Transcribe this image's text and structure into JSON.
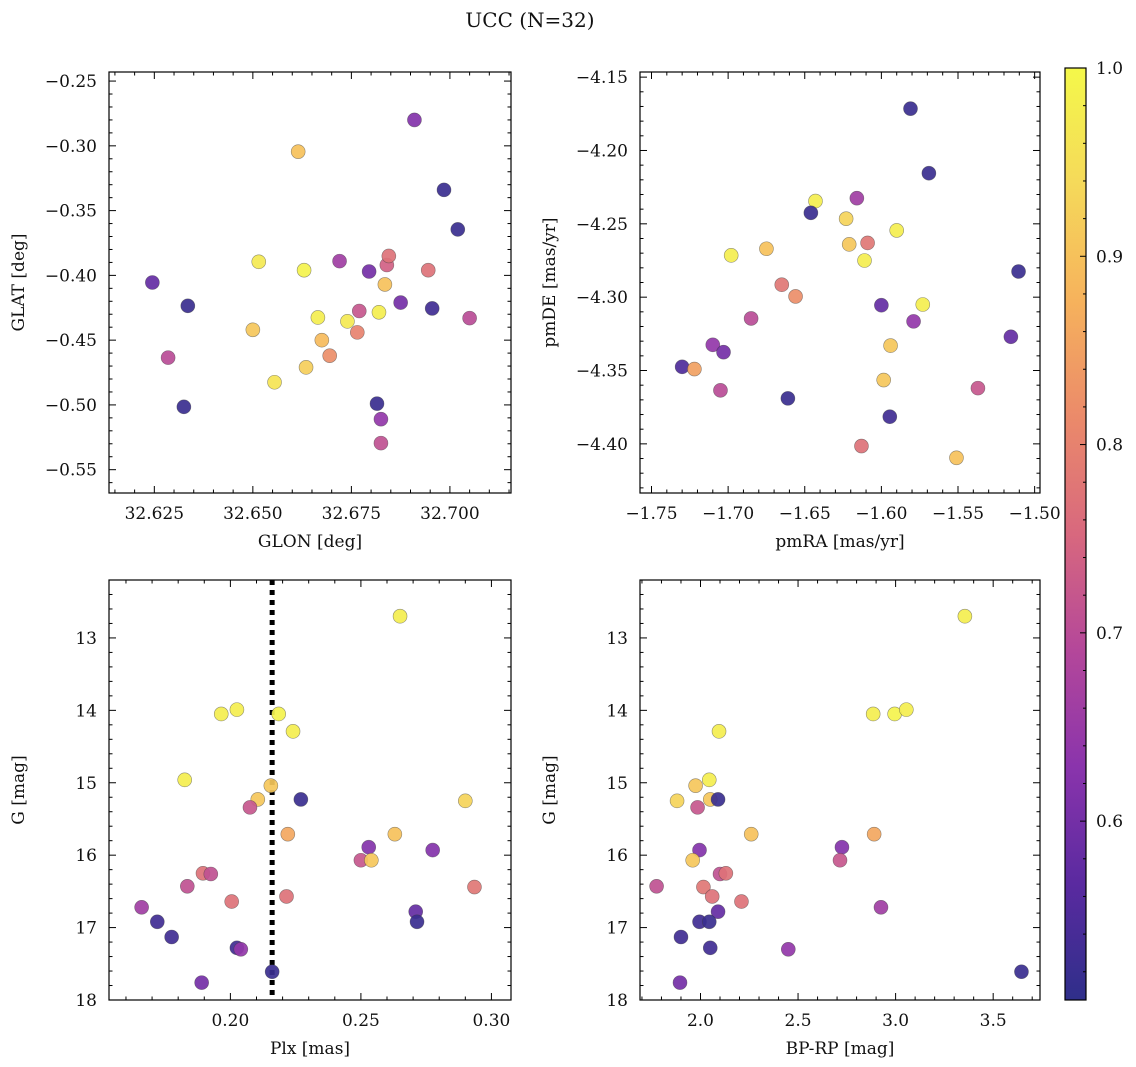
{
  "figure": {
    "title": "UCC (N=32)"
  },
  "chart_data": [
    {
      "type": "scatter",
      "panel": "top-left",
      "xlabel": "GLON [deg]",
      "ylabel": "GLAT [deg]",
      "xlim": [
        32.6135,
        32.7155
      ],
      "ylim": [
        -0.568,
        -0.243
      ],
      "xticks": [
        32.625,
        32.65,
        32.675,
        32.7
      ],
      "xtick_labels": [
        "32.625",
        "32.650",
        "32.675",
        "32.700"
      ],
      "yticks": [
        -0.55,
        -0.5,
        -0.45,
        -0.4,
        -0.35,
        -0.3,
        -0.25
      ],
      "ytick_labels": [
        "−0.55",
        "−0.50",
        "−0.45",
        "−0.40",
        "−0.35",
        "−0.30",
        "−0.25"
      ],
      "points": [
        {
          "x": 32.6245,
          "y": -0.4055,
          "c": 0.58
        },
        {
          "x": 32.6335,
          "y": -0.4235,
          "c": 0.52
        },
        {
          "x": 32.6285,
          "y": -0.4635,
          "c": 0.7
        },
        {
          "x": 32.6325,
          "y": -0.5015,
          "c": 0.52
        },
        {
          "x": 32.6615,
          "y": -0.3045,
          "c": 0.9
        },
        {
          "x": 32.6515,
          "y": -0.3895,
          "c": 0.97
        },
        {
          "x": 32.65,
          "y": -0.442,
          "c": 0.91
        },
        {
          "x": 32.6555,
          "y": -0.4825,
          "c": 0.96
        },
        {
          "x": 32.663,
          "y": -0.396,
          "c": 0.99
        },
        {
          "x": 32.6635,
          "y": -0.471,
          "c": 0.92
        },
        {
          "x": 32.6665,
          "y": -0.4325,
          "c": 0.98
        },
        {
          "x": 32.6675,
          "y": -0.45,
          "c": 0.89
        },
        {
          "x": 32.6695,
          "y": -0.462,
          "c": 0.82
        },
        {
          "x": 32.672,
          "y": -0.389,
          "c": 0.66
        },
        {
          "x": 32.674,
          "y": -0.4355,
          "c": 0.97
        },
        {
          "x": 32.6765,
          "y": -0.444,
          "c": 0.8
        },
        {
          "x": 32.677,
          "y": -0.4275,
          "c": 0.72
        },
        {
          "x": 32.6795,
          "y": -0.397,
          "c": 0.6
        },
        {
          "x": 32.6815,
          "y": -0.499,
          "c": 0.52
        },
        {
          "x": 32.682,
          "y": -0.4285,
          "c": 0.98
        },
        {
          "x": 32.6825,
          "y": -0.5295,
          "c": 0.71
        },
        {
          "x": 32.6825,
          "y": -0.511,
          "c": 0.64
        },
        {
          "x": 32.6835,
          "y": -0.407,
          "c": 0.9
        },
        {
          "x": 32.684,
          "y": -0.392,
          "c": 0.74
        },
        {
          "x": 32.6845,
          "y": -0.385,
          "c": 0.77
        },
        {
          "x": 32.6875,
          "y": -0.421,
          "c": 0.6
        },
        {
          "x": 32.691,
          "y": -0.28,
          "c": 0.62
        },
        {
          "x": 32.6945,
          "y": -0.396,
          "c": 0.77
        },
        {
          "x": 32.6955,
          "y": -0.4255,
          "c": 0.53
        },
        {
          "x": 32.6985,
          "y": -0.334,
          "c": 0.52
        },
        {
          "x": 32.702,
          "y": -0.3645,
          "c": 0.52
        },
        {
          "x": 32.705,
          "y": -0.433,
          "c": 0.7
        }
      ]
    },
    {
      "type": "scatter",
      "panel": "top-right",
      "xlabel": "pmRA [mas/yr]",
      "ylabel": "pmDE [mas/yr]",
      "xlim": [
        -1.7575,
        -1.4965
      ],
      "ylim": [
        -4.4335,
        -4.1465
      ],
      "xticks": [
        -1.75,
        -1.7,
        -1.65,
        -1.6,
        -1.55,
        -1.5
      ],
      "xtick_labels": [
        "−1.75",
        "−1.70",
        "−1.65",
        "−1.60",
        "−1.55",
        "−1.50"
      ],
      "yticks": [
        -4.4,
        -4.35,
        -4.3,
        -4.25,
        -4.2,
        -4.15
      ],
      "ytick_labels": [
        "−4.40",
        "−4.35",
        "−4.30",
        "−4.25",
        "−4.20",
        "−4.15"
      ],
      "points": [
        {
          "x": -1.581,
          "y": -4.1715,
          "c": 0.52
        },
        {
          "x": -1.569,
          "y": -4.2155,
          "c": 0.52
        },
        {
          "x": -1.643,
          "y": -4.2345,
          "c": 0.98
        },
        {
          "x": -1.646,
          "y": -4.2425,
          "c": 0.52
        },
        {
          "x": -1.616,
          "y": -4.2325,
          "c": 0.66
        },
        {
          "x": -1.623,
          "y": -4.2465,
          "c": 0.93
        },
        {
          "x": -1.59,
          "y": -4.2545,
          "c": 0.98
        },
        {
          "x": -1.621,
          "y": -4.264,
          "c": 0.91
        },
        {
          "x": -1.609,
          "y": -4.263,
          "c": 0.78
        },
        {
          "x": -1.675,
          "y": -4.267,
          "c": 0.9
        },
        {
          "x": -1.698,
          "y": -4.2715,
          "c": 0.98
        },
        {
          "x": -1.611,
          "y": -4.275,
          "c": 0.98
        },
        {
          "x": -1.5105,
          "y": -4.2825,
          "c": 0.52
        },
        {
          "x": -1.665,
          "y": -4.2915,
          "c": 0.78
        },
        {
          "x": -1.656,
          "y": -4.2995,
          "c": 0.82
        },
        {
          "x": -1.6,
          "y": -4.3055,
          "c": 0.58
        },
        {
          "x": -1.573,
          "y": -4.305,
          "c": 0.98
        },
        {
          "x": -1.685,
          "y": -4.3145,
          "c": 0.7
        },
        {
          "x": -1.579,
          "y": -4.3165,
          "c": 0.64
        },
        {
          "x": -1.5155,
          "y": -4.327,
          "c": 0.58
        },
        {
          "x": -1.71,
          "y": -4.3325,
          "c": 0.64
        },
        {
          "x": -1.594,
          "y": -4.333,
          "c": 0.91
        },
        {
          "x": -1.703,
          "y": -4.3375,
          "c": 0.6
        },
        {
          "x": -1.73,
          "y": -4.3475,
          "c": 0.55
        },
        {
          "x": -1.722,
          "y": -4.349,
          "c": 0.85
        },
        {
          "x": -1.5985,
          "y": -4.3565,
          "c": 0.91
        },
        {
          "x": -1.537,
          "y": -4.362,
          "c": 0.72
        },
        {
          "x": -1.705,
          "y": -4.3635,
          "c": 0.7
        },
        {
          "x": -1.661,
          "y": -4.369,
          "c": 0.52
        },
        {
          "x": -1.5945,
          "y": -4.3815,
          "c": 0.53
        },
        {
          "x": -1.613,
          "y": -4.4015,
          "c": 0.77
        },
        {
          "x": -1.551,
          "y": -4.4095,
          "c": 0.9
        }
      ]
    },
    {
      "type": "scatter",
      "panel": "bottom-left",
      "xlabel": "Plx [mas]",
      "ylabel": "G [mag]",
      "xlim": [
        0.1535,
        0.3075
      ],
      "ylim": [
        18.0,
        12.2
      ],
      "invert_y": true,
      "xticks": [
        0.2,
        0.25,
        0.3
      ],
      "xtick_labels": [
        "0.20",
        "0.25",
        "0.30"
      ],
      "yticks": [
        13,
        14,
        15,
        16,
        17,
        18
      ],
      "ytick_labels": [
        "13",
        "14",
        "15",
        "16",
        "17",
        "18"
      ],
      "vline": 0.216,
      "points": [
        {
          "x": 0.265,
          "y": 12.7,
          "c": 0.98
        },
        {
          "x": 0.1965,
          "y": 14.05,
          "c": 0.98
        },
        {
          "x": 0.2025,
          "y": 13.99,
          "c": 0.98
        },
        {
          "x": 0.2185,
          "y": 14.05,
          "c": 0.99
        },
        {
          "x": 0.224,
          "y": 14.29,
          "c": 0.98
        },
        {
          "x": 0.1825,
          "y": 14.96,
          "c": 0.98
        },
        {
          "x": 0.2155,
          "y": 15.04,
          "c": 0.91
        },
        {
          "x": 0.2105,
          "y": 15.23,
          "c": 0.91
        },
        {
          "x": 0.227,
          "y": 15.23,
          "c": 0.52
        },
        {
          "x": 0.2075,
          "y": 15.34,
          "c": 0.72
        },
        {
          "x": 0.29,
          "y": 15.25,
          "c": 0.93
        },
        {
          "x": 0.222,
          "y": 15.71,
          "c": 0.86
        },
        {
          "x": 0.263,
          "y": 15.71,
          "c": 0.9
        },
        {
          "x": 0.253,
          "y": 15.89,
          "c": 0.62
        },
        {
          "x": 0.2775,
          "y": 15.93,
          "c": 0.62
        },
        {
          "x": 0.25,
          "y": 16.07,
          "c": 0.72
        },
        {
          "x": 0.254,
          "y": 16.07,
          "c": 0.91
        },
        {
          "x": 0.1895,
          "y": 16.25,
          "c": 0.77
        },
        {
          "x": 0.1925,
          "y": 16.26,
          "c": 0.71
        },
        {
          "x": 0.1835,
          "y": 16.43,
          "c": 0.71
        },
        {
          "x": 0.2935,
          "y": 16.44,
          "c": 0.78
        },
        {
          "x": 0.2215,
          "y": 16.57,
          "c": 0.77
        },
        {
          "x": 0.2005,
          "y": 16.64,
          "c": 0.77
        },
        {
          "x": 0.166,
          "y": 16.72,
          "c": 0.66
        },
        {
          "x": 0.271,
          "y": 16.78,
          "c": 0.58
        },
        {
          "x": 0.172,
          "y": 16.92,
          "c": 0.53
        },
        {
          "x": 0.2715,
          "y": 16.92,
          "c": 0.52
        },
        {
          "x": 0.1775,
          "y": 17.13,
          "c": 0.53
        },
        {
          "x": 0.2025,
          "y": 17.28,
          "c": 0.53
        },
        {
          "x": 0.204,
          "y": 17.3,
          "c": 0.64
        },
        {
          "x": 0.216,
          "y": 17.61,
          "c": 0.52
        },
        {
          "x": 0.189,
          "y": 17.76,
          "c": 0.6
        }
      ]
    },
    {
      "type": "scatter",
      "panel": "bottom-right",
      "xlabel": "BP-RP [mag]",
      "ylabel": "G [mag]",
      "xlim": [
        1.69,
        3.74
      ],
      "ylim": [
        18.0,
        12.2
      ],
      "invert_y": true,
      "xticks": [
        2.0,
        2.5,
        3.0,
        3.5
      ],
      "xtick_labels": [
        "2.0",
        "2.5",
        "3.0",
        "3.5"
      ],
      "yticks": [
        13,
        14,
        15,
        16,
        17,
        18
      ],
      "ytick_labels": [
        "13",
        "14",
        "15",
        "16",
        "17",
        "18"
      ],
      "points": [
        {
          "x": 3.355,
          "y": 12.7,
          "c": 0.98
        },
        {
          "x": 2.885,
          "y": 14.05,
          "c": 0.98
        },
        {
          "x": 2.995,
          "y": 14.05,
          "c": 0.99
        },
        {
          "x": 3.055,
          "y": 13.99,
          "c": 0.98
        },
        {
          "x": 2.095,
          "y": 14.29,
          "c": 0.98
        },
        {
          "x": 2.045,
          "y": 14.96,
          "c": 0.98
        },
        {
          "x": 1.975,
          "y": 15.04,
          "c": 0.91
        },
        {
          "x": 1.88,
          "y": 15.25,
          "c": 0.93
        },
        {
          "x": 2.05,
          "y": 15.23,
          "c": 0.91
        },
        {
          "x": 2.09,
          "y": 15.23,
          "c": 0.52
        },
        {
          "x": 1.985,
          "y": 15.34,
          "c": 0.72
        },
        {
          "x": 2.26,
          "y": 15.71,
          "c": 0.9
        },
        {
          "x": 2.89,
          "y": 15.71,
          "c": 0.86
        },
        {
          "x": 1.995,
          "y": 15.93,
          "c": 0.62
        },
        {
          "x": 2.725,
          "y": 15.89,
          "c": 0.62
        },
        {
          "x": 1.96,
          "y": 16.07,
          "c": 0.91
        },
        {
          "x": 2.715,
          "y": 16.07,
          "c": 0.72
        },
        {
          "x": 2.1,
          "y": 16.26,
          "c": 0.71
        },
        {
          "x": 2.13,
          "y": 16.25,
          "c": 0.77
        },
        {
          "x": 1.775,
          "y": 16.43,
          "c": 0.71
        },
        {
          "x": 2.015,
          "y": 16.44,
          "c": 0.78
        },
        {
          "x": 2.06,
          "y": 16.57,
          "c": 0.77
        },
        {
          "x": 2.21,
          "y": 16.64,
          "c": 0.77
        },
        {
          "x": 2.925,
          "y": 16.72,
          "c": 0.66
        },
        {
          "x": 2.09,
          "y": 16.78,
          "c": 0.58
        },
        {
          "x": 1.995,
          "y": 16.92,
          "c": 0.53
        },
        {
          "x": 2.045,
          "y": 16.92,
          "c": 0.52
        },
        {
          "x": 1.9,
          "y": 17.13,
          "c": 0.53
        },
        {
          "x": 2.05,
          "y": 17.28,
          "c": 0.53
        },
        {
          "x": 2.45,
          "y": 17.3,
          "c": 0.64
        },
        {
          "x": 3.645,
          "y": 17.61,
          "c": 0.52
        },
        {
          "x": 1.895,
          "y": 17.76,
          "c": 0.6
        }
      ]
    }
  ],
  "colorbar": {
    "vmin": 0.505,
    "vmax": 1.0,
    "ticks": [
      0.6,
      0.7,
      0.8,
      0.9,
      1.0
    ],
    "tick_labels": [
      "0.6",
      "0.7",
      "0.8",
      "0.9",
      "1.0"
    ],
    "colormap": "plasma",
    "stops": [
      "#2f2f8a",
      "#5a2aa0",
      "#8a34ac",
      "#b4479a",
      "#d8687e",
      "#eb8a6a",
      "#f6b25c",
      "#f5d95a",
      "#f4f84a"
    ]
  }
}
